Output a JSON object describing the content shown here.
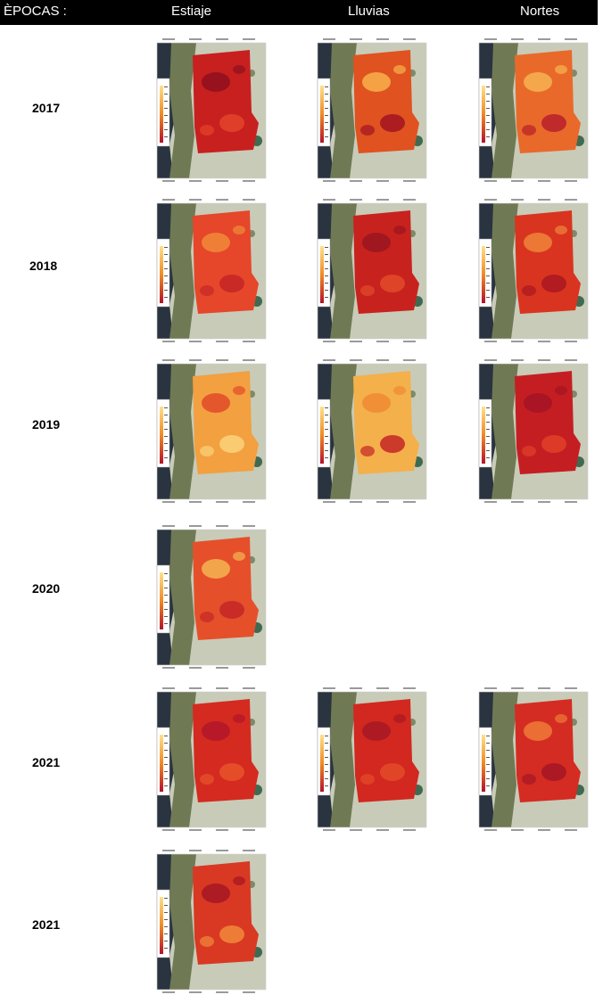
{
  "header": {
    "epocas_label": "ÈPOCAS :",
    "seasons": [
      "Estiaje",
      "Lluvias",
      "Nortes"
    ]
  },
  "years": [
    "2017",
    "2018",
    "2019",
    "2020",
    "2021",
    "2021"
  ],
  "colors": {
    "header_bg": "#000000",
    "header_text": "#ffffff",
    "heat_low": "#fde28a",
    "heat_mid": "#f08a24",
    "heat_high": "#b5122a",
    "land": "#6f7a54",
    "water": "#2a3340",
    "flat": "#c8cbb8"
  },
  "maps": [
    {
      "row": 0,
      "col": 0,
      "tone": "#c8201f",
      "spots": [
        "#8e0f1f",
        "#e3452a"
      ]
    },
    {
      "row": 0,
      "col": 1,
      "tone": "#e0521f",
      "spots": [
        "#f7b04a",
        "#a11422"
      ]
    },
    {
      "row": 0,
      "col": 2,
      "tone": "#e9692a",
      "spots": [
        "#f6b451",
        "#b8202a"
      ]
    },
    {
      "row": 1,
      "col": 0,
      "tone": "#e6462a",
      "spots": [
        "#f08a3a",
        "#c42626"
      ]
    },
    {
      "row": 1,
      "col": 1,
      "tone": "#c8221f",
      "spots": [
        "#9a1520",
        "#e24a2a"
      ]
    },
    {
      "row": 1,
      "col": 2,
      "tone": "#d9341f",
      "spots": [
        "#f0843a",
        "#a91722"
      ]
    },
    {
      "row": 2,
      "col": 0,
      "tone": "#f2a040",
      "spots": [
        "#e24a2a",
        "#fbd27a"
      ]
    },
    {
      "row": 2,
      "col": 1,
      "tone": "#f4b04a",
      "spots": [
        "#f08a34",
        "#c42626"
      ]
    },
    {
      "row": 2,
      "col": 2,
      "tone": "#c51e22",
      "spots": [
        "#a31424",
        "#e04028"
      ]
    },
    {
      "row": 3,
      "col": 0,
      "tone": "#e5502a",
      "spots": [
        "#f6b451",
        "#c42626"
      ]
    },
    {
      "row": 4,
      "col": 0,
      "tone": "#d42a20",
      "spots": [
        "#b2162a",
        "#e8542c"
      ]
    },
    {
      "row": 4,
      "col": 1,
      "tone": "#d2281f",
      "spots": [
        "#a81724",
        "#e44a2a"
      ]
    },
    {
      "row": 4,
      "col": 2,
      "tone": "#d42c22",
      "spots": [
        "#ee7a38",
        "#a51625"
      ]
    },
    {
      "row": 5,
      "col": 0,
      "tone": "#d93822",
      "spots": [
        "#a51625",
        "#f08a3a"
      ]
    }
  ]
}
